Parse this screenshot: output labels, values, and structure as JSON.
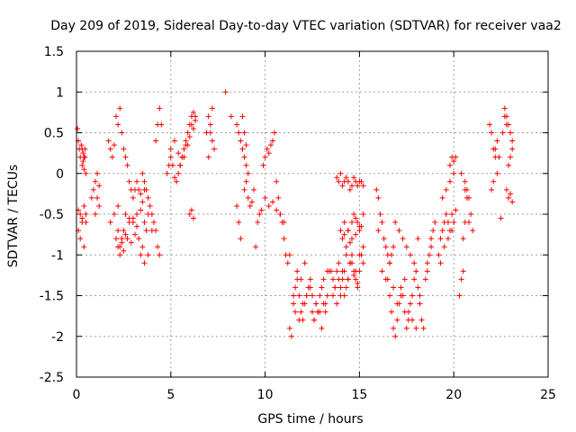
{
  "chart_data": {
    "type": "scatter",
    "title": "Day 209 of 2019, Sidereal Day-to-day VTEC variation (SDTVAR) for receiver vaa2",
    "xlabel": "GPS time / hours",
    "ylabel": "SDTVAR / TECUs",
    "xlim": [
      0,
      25
    ],
    "ylim": [
      -2.5,
      1.5
    ],
    "xticks": [
      0,
      5,
      10,
      15,
      20,
      25
    ],
    "xtick_labels": [
      "0",
      "5",
      "10",
      "15",
      "20",
      "25"
    ],
    "yticks": [
      -2.5,
      -2,
      -1.5,
      -1,
      -0.5,
      0,
      0.5,
      1,
      1.5
    ],
    "ytick_labels": [
      "-2.5",
      "-2",
      "-1.5",
      "-1",
      "-0.5",
      "0",
      "0.5",
      "1",
      "1.5"
    ],
    "grid": true,
    "marker": "+",
    "color": "#ff0000",
    "series": [
      {
        "name": "SDTVAR",
        "x": [
          0.05,
          0.1,
          0.15,
          0.2,
          0.25,
          0.3,
          0.35,
          0.4,
          0.45,
          0.1,
          0.2,
          0.3,
          0.4,
          0.5,
          0.1,
          0.2,
          0.3,
          0.4,
          0.5,
          0.3,
          0.35,
          0.4,
          0.45,
          0.5,
          0.8,
          0.9,
          1.0,
          1.1,
          1.2,
          1.0,
          1.1,
          1.2,
          1.7,
          1.8,
          1.9,
          2.0,
          2.1,
          2.2,
          2.3,
          2.4,
          2.5,
          2.6,
          2.7,
          2.8,
          2.9,
          3.0,
          3.1,
          3.2,
          3.3,
          3.4,
          3.5,
          3.6,
          1.8,
          2.0,
          2.2,
          2.4,
          2.6,
          2.8,
          3.0,
          3.2,
          3.4,
          3.6,
          3.8,
          2.1,
          2.3,
          2.5,
          2.7,
          2.9,
          3.1,
          3.3,
          3.5,
          3.7,
          2.2,
          2.3,
          2.4,
          2.5,
          2.2,
          2.6,
          2.8,
          3.0,
          3.2,
          3.4,
          3.6,
          3.8,
          4.0,
          3.5,
          3.6,
          3.7,
          3.8,
          3.9,
          4.0,
          4.1,
          4.2,
          4.3,
          4.4,
          4.2,
          4.3,
          4.4,
          4.5,
          4.8,
          4.9,
          5.0,
          5.1,
          5.2,
          5.3,
          5.4,
          5.5,
          5.6,
          5.7,
          5.8,
          5.9,
          6.0,
          6.1,
          6.2,
          6.3,
          5.0,
          5.2,
          5.4,
          5.6,
          5.8,
          6.0,
          6.2,
          5.5,
          5.7,
          5.9,
          6.1,
          6.3,
          6.0,
          6.1,
          6.2,
          6.9,
          7.0,
          7.1,
          7.2,
          7.3,
          7.0,
          7.1,
          7.2,
          7.9,
          8.2,
          8.5,
          8.6,
          8.7,
          8.8,
          8.9,
          9.0,
          9.1,
          8.8,
          8.9,
          9.0,
          8.5,
          8.6,
          8.7,
          8.9,
          9.0,
          9.1,
          9.2,
          9.3,
          9.4,
          9.5,
          9.6,
          9.7,
          9.8,
          9.9,
          10.0,
          10.1,
          10.2,
          10.3,
          10.4,
          10.5,
          10.6,
          10.7,
          10.8,
          10.9,
          11.0,
          11.1,
          11.2,
          11.3,
          10.0,
          10.2,
          10.4,
          10.6,
          10.8,
          11.0,
          11.3,
          11.4,
          11.5,
          11.6,
          11.7,
          11.8,
          11.9,
          12.0,
          12.1,
          12.2,
          12.3,
          12.4,
          12.5,
          12.6,
          12.7,
          12.8,
          12.9,
          13.0,
          13.1,
          13.2,
          13.3,
          13.4,
          11.5,
          11.7,
          11.9,
          12.1,
          12.3,
          12.5,
          12.7,
          12.9,
          13.1,
          13.3,
          11.6,
          11.8,
          12.0,
          12.2,
          12.4,
          12.6,
          12.8,
          13.0,
          13.2,
          13.5,
          13.6,
          13.7,
          13.8,
          13.9,
          14.0,
          14.1,
          14.2,
          14.3,
          14.4,
          14.5,
          14.6,
          14.7,
          14.8,
          14.9,
          15.0,
          15.1,
          15.2,
          13.6,
          13.8,
          14.0,
          14.2,
          14.4,
          14.6,
          14.8,
          15.0,
          15.2,
          13.7,
          13.9,
          14.1,
          14.3,
          14.5,
          14.7,
          14.9,
          14.0,
          14.1,
          14.2,
          14.3,
          14.4,
          14.5,
          14.6,
          14.7,
          14.8,
          14.9,
          15.0,
          15.1,
          15.2,
          14.2,
          14.4,
          14.6,
          14.8,
          15.0,
          13.8,
          13.9,
          14.0,
          14.1,
          14.2,
          14.3,
          14.4,
          14.5,
          14.6,
          14.7,
          14.8,
          14.9,
          15.0,
          15.1,
          15.2,
          15.9,
          16.0,
          16.1,
          16.2,
          16.3,
          16.4,
          16.5,
          16.6,
          16.7,
          16.8,
          16.0,
          16.2,
          16.4,
          16.6,
          16.5,
          16.6,
          16.7,
          16.8,
          16.9,
          17.0,
          17.1,
          17.2,
          17.3,
          17.4,
          17.5,
          17.6,
          17.7,
          17.8,
          17.9,
          18.0,
          18.1,
          18.2,
          18.3,
          18.4,
          16.8,
          17.0,
          17.2,
          17.4,
          17.6,
          17.8,
          18.0,
          18.2,
          16.9,
          17.1,
          17.3,
          17.5,
          17.7,
          17.9,
          18.1,
          18.5,
          18.6,
          18.7,
          18.8,
          18.9,
          19.0,
          18.6,
          18.8,
          19.2,
          19.3,
          19.4,
          19.5,
          19.6,
          19.7,
          19.8,
          19.9,
          20.0,
          20.1,
          19.3,
          19.5,
          19.7,
          19.9,
          19.4,
          19.6,
          19.8,
          20.0,
          19.8,
          19.9,
          20.0,
          20.1,
          20.3,
          20.4,
          20.5,
          20.6,
          20.7,
          20.8,
          20.9,
          21.0,
          20.5,
          20.6,
          20.7,
          20.4,
          20.6,
          20.8,
          21.9,
          22.0,
          22.1,
          22.2,
          22.3,
          22.0,
          22.1,
          22.2,
          22.3,
          22.4,
          22.5,
          22.6,
          22.7,
          22.8,
          22.9,
          23.0,
          23.1,
          22.7,
          22.8,
          22.9,
          23.0,
          23.1,
          22.8,
          22.9,
          23.0,
          23.1
        ],
        "y": [
          0.55,
          0.4,
          0.3,
          0.2,
          0.35,
          0.3,
          0.25,
          0.2,
          0.3,
          -0.7,
          -0.8,
          -0.6,
          -0.9,
          -0.5,
          -0.45,
          -0.5,
          -0.55,
          -0.4,
          -0.6,
          0.1,
          0.15,
          0.05,
          0.2,
          0.0,
          -0.3,
          -0.2,
          -0.1,
          0.0,
          -0.4,
          -0.5,
          -0.3,
          -0.15,
          0.4,
          0.3,
          0.2,
          0.35,
          0.7,
          0.6,
          0.8,
          0.5,
          0.3,
          0.2,
          0.1,
          -0.1,
          -0.2,
          -0.3,
          -0.2,
          -0.1,
          -0.2,
          -0.25,
          -0.35,
          -0.2,
          -0.6,
          -0.5,
          -0.7,
          -0.8,
          -0.75,
          -0.6,
          -0.55,
          -0.5,
          -0.45,
          -0.6,
          -0.5,
          -0.8,
          -0.9,
          -0.7,
          -0.8,
          -0.85,
          -0.75,
          -0.8,
          -0.9,
          -0.7,
          -0.9,
          -1.0,
          -0.85,
          -0.95,
          -0.4,
          -0.5,
          -0.55,
          -0.6,
          -0.65,
          -1.0,
          -1.1,
          -1.0,
          -0.7,
          0.0,
          -0.1,
          -0.2,
          -0.3,
          -0.4,
          -0.5,
          -0.6,
          -0.7,
          -0.9,
          -1.0,
          0.4,
          0.6,
          0.8,
          0.6,
          0.0,
          0.1,
          0.2,
          0.1,
          -0.05,
          -0.1,
          0.0,
          0.1,
          0.2,
          0.3,
          0.4,
          0.5,
          0.6,
          0.7,
          0.75,
          0.7,
          0.3,
          0.4,
          0.25,
          0.2,
          0.35,
          0.45,
          0.55,
          0.1,
          0.2,
          0.35,
          0.6,
          0.65,
          -0.5,
          -0.45,
          -0.55,
          0.5,
          0.7,
          0.6,
          0.4,
          0.3,
          0.2,
          0.5,
          0.8,
          1.0,
          0.7,
          0.6,
          0.5,
          0.4,
          0.3,
          0.2,
          0.1,
          0.0,
          0.7,
          0.5,
          0.35,
          -0.4,
          -0.6,
          -0.8,
          -0.2,
          -0.1,
          -0.3,
          -0.4,
          -0.35,
          -0.2,
          -0.9,
          -0.6,
          -0.5,
          -0.45,
          0.1,
          0.2,
          0.3,
          0.25,
          0.35,
          0.4,
          0.5,
          -0.1,
          -0.3,
          -0.5,
          -0.6,
          -0.8,
          -1.0,
          -1.1,
          -1.0,
          -0.3,
          -0.4,
          -0.35,
          -0.45,
          -0.5,
          -0.6,
          -1.9,
          -2.0,
          -1.6,
          -1.4,
          -1.3,
          -1.5,
          -1.7,
          -1.8,
          -1.6,
          -1.5,
          -1.4,
          -1.3,
          -1.7,
          -1.8,
          -1.6,
          -1.7,
          -1.5,
          -1.4,
          -1.6,
          -1.7,
          -1.5,
          -1.2,
          -1.5,
          -1.2,
          -1.3,
          -1.1,
          -1.4,
          -1.5,
          -1.6,
          -1.7,
          -1.3,
          -1.2,
          -1.7,
          -1.8,
          -1.6,
          -1.5,
          -1.4,
          -1.8,
          -1.7,
          -1.9,
          -1.6,
          -1.2,
          -1.3,
          -1.4,
          -1.2,
          -1.1,
          -1.5,
          -1.3,
          -1.2,
          -1.4,
          -1.3,
          -1.1,
          -1.0,
          -1.2,
          -1.3,
          -1.4,
          -1.2,
          -1.0,
          -0.9,
          -1.5,
          -1.6,
          -1.4,
          -1.5,
          -1.3,
          -1.1,
          -1.2,
          -1.0,
          -1.1,
          -1.4,
          -1.3,
          -1.2,
          -1.0,
          -1.1,
          -1.25,
          -1.35,
          -0.7,
          -0.8,
          -0.75,
          -0.9,
          -0.7,
          -0.85,
          -0.6,
          -0.5,
          -0.55,
          -0.6,
          -0.7,
          -0.65,
          -0.5,
          -0.6,
          -0.7,
          -0.8,
          -0.75,
          -0.65,
          -0.05,
          -0.1,
          0.0,
          -0.15,
          -0.1,
          -0.05,
          -0.1,
          -0.2,
          -0.15,
          -0.05,
          -0.1,
          -0.15,
          -0.1,
          -0.1,
          -0.15,
          -0.2,
          -0.3,
          -0.5,
          -0.6,
          -0.8,
          -0.9,
          -1.0,
          -1.1,
          -1.0,
          -0.9,
          -0.7,
          -1.2,
          -1.3,
          -1.1,
          -1.3,
          -1.5,
          -1.7,
          -1.9,
          -2.0,
          -1.8,
          -1.6,
          -1.4,
          -1.5,
          -1.7,
          -1.9,
          -1.8,
          -1.6,
          -1.5,
          -1.3,
          -1.2,
          -1.4,
          -1.6,
          -1.8,
          -1.9,
          -1.4,
          -1.6,
          -1.5,
          -1.3,
          -1.7,
          -1.8,
          -1.9,
          -1.5,
          -0.6,
          -0.7,
          -0.8,
          -0.9,
          -1.0,
          -1.1,
          -0.8,
          -1.3,
          -1.1,
          -1.0,
          -0.8,
          -0.7,
          -0.6,
          -1.2,
          -0.9,
          -1.0,
          -0.8,
          -0.7,
          -0.6,
          -0.5,
          -0.6,
          -0.7,
          -0.5,
          -0.6,
          -0.45,
          -1.1,
          -0.9,
          -0.8,
          -0.7,
          -0.3,
          -0.2,
          -0.1,
          0.0,
          0.1,
          0.2,
          0.15,
          0.2,
          -1.5,
          -1.3,
          -1.2,
          -0.1,
          -0.2,
          -0.3,
          -0.5,
          -0.7,
          -0.8,
          -0.6,
          -0.3,
          0.0,
          -0.2,
          -0.6,
          0.6,
          0.5,
          0.3,
          0.2,
          0.0,
          -0.2,
          -0.1,
          0.3,
          0.4,
          0.2,
          -0.55,
          0.5,
          0.8,
          0.7,
          0.6,
          0.5,
          0.4,
          0.7,
          0.6,
          0.1,
          0.2,
          0.3,
          -0.2,
          -0.3,
          -0.25,
          -0.35
        ]
      }
    ]
  }
}
